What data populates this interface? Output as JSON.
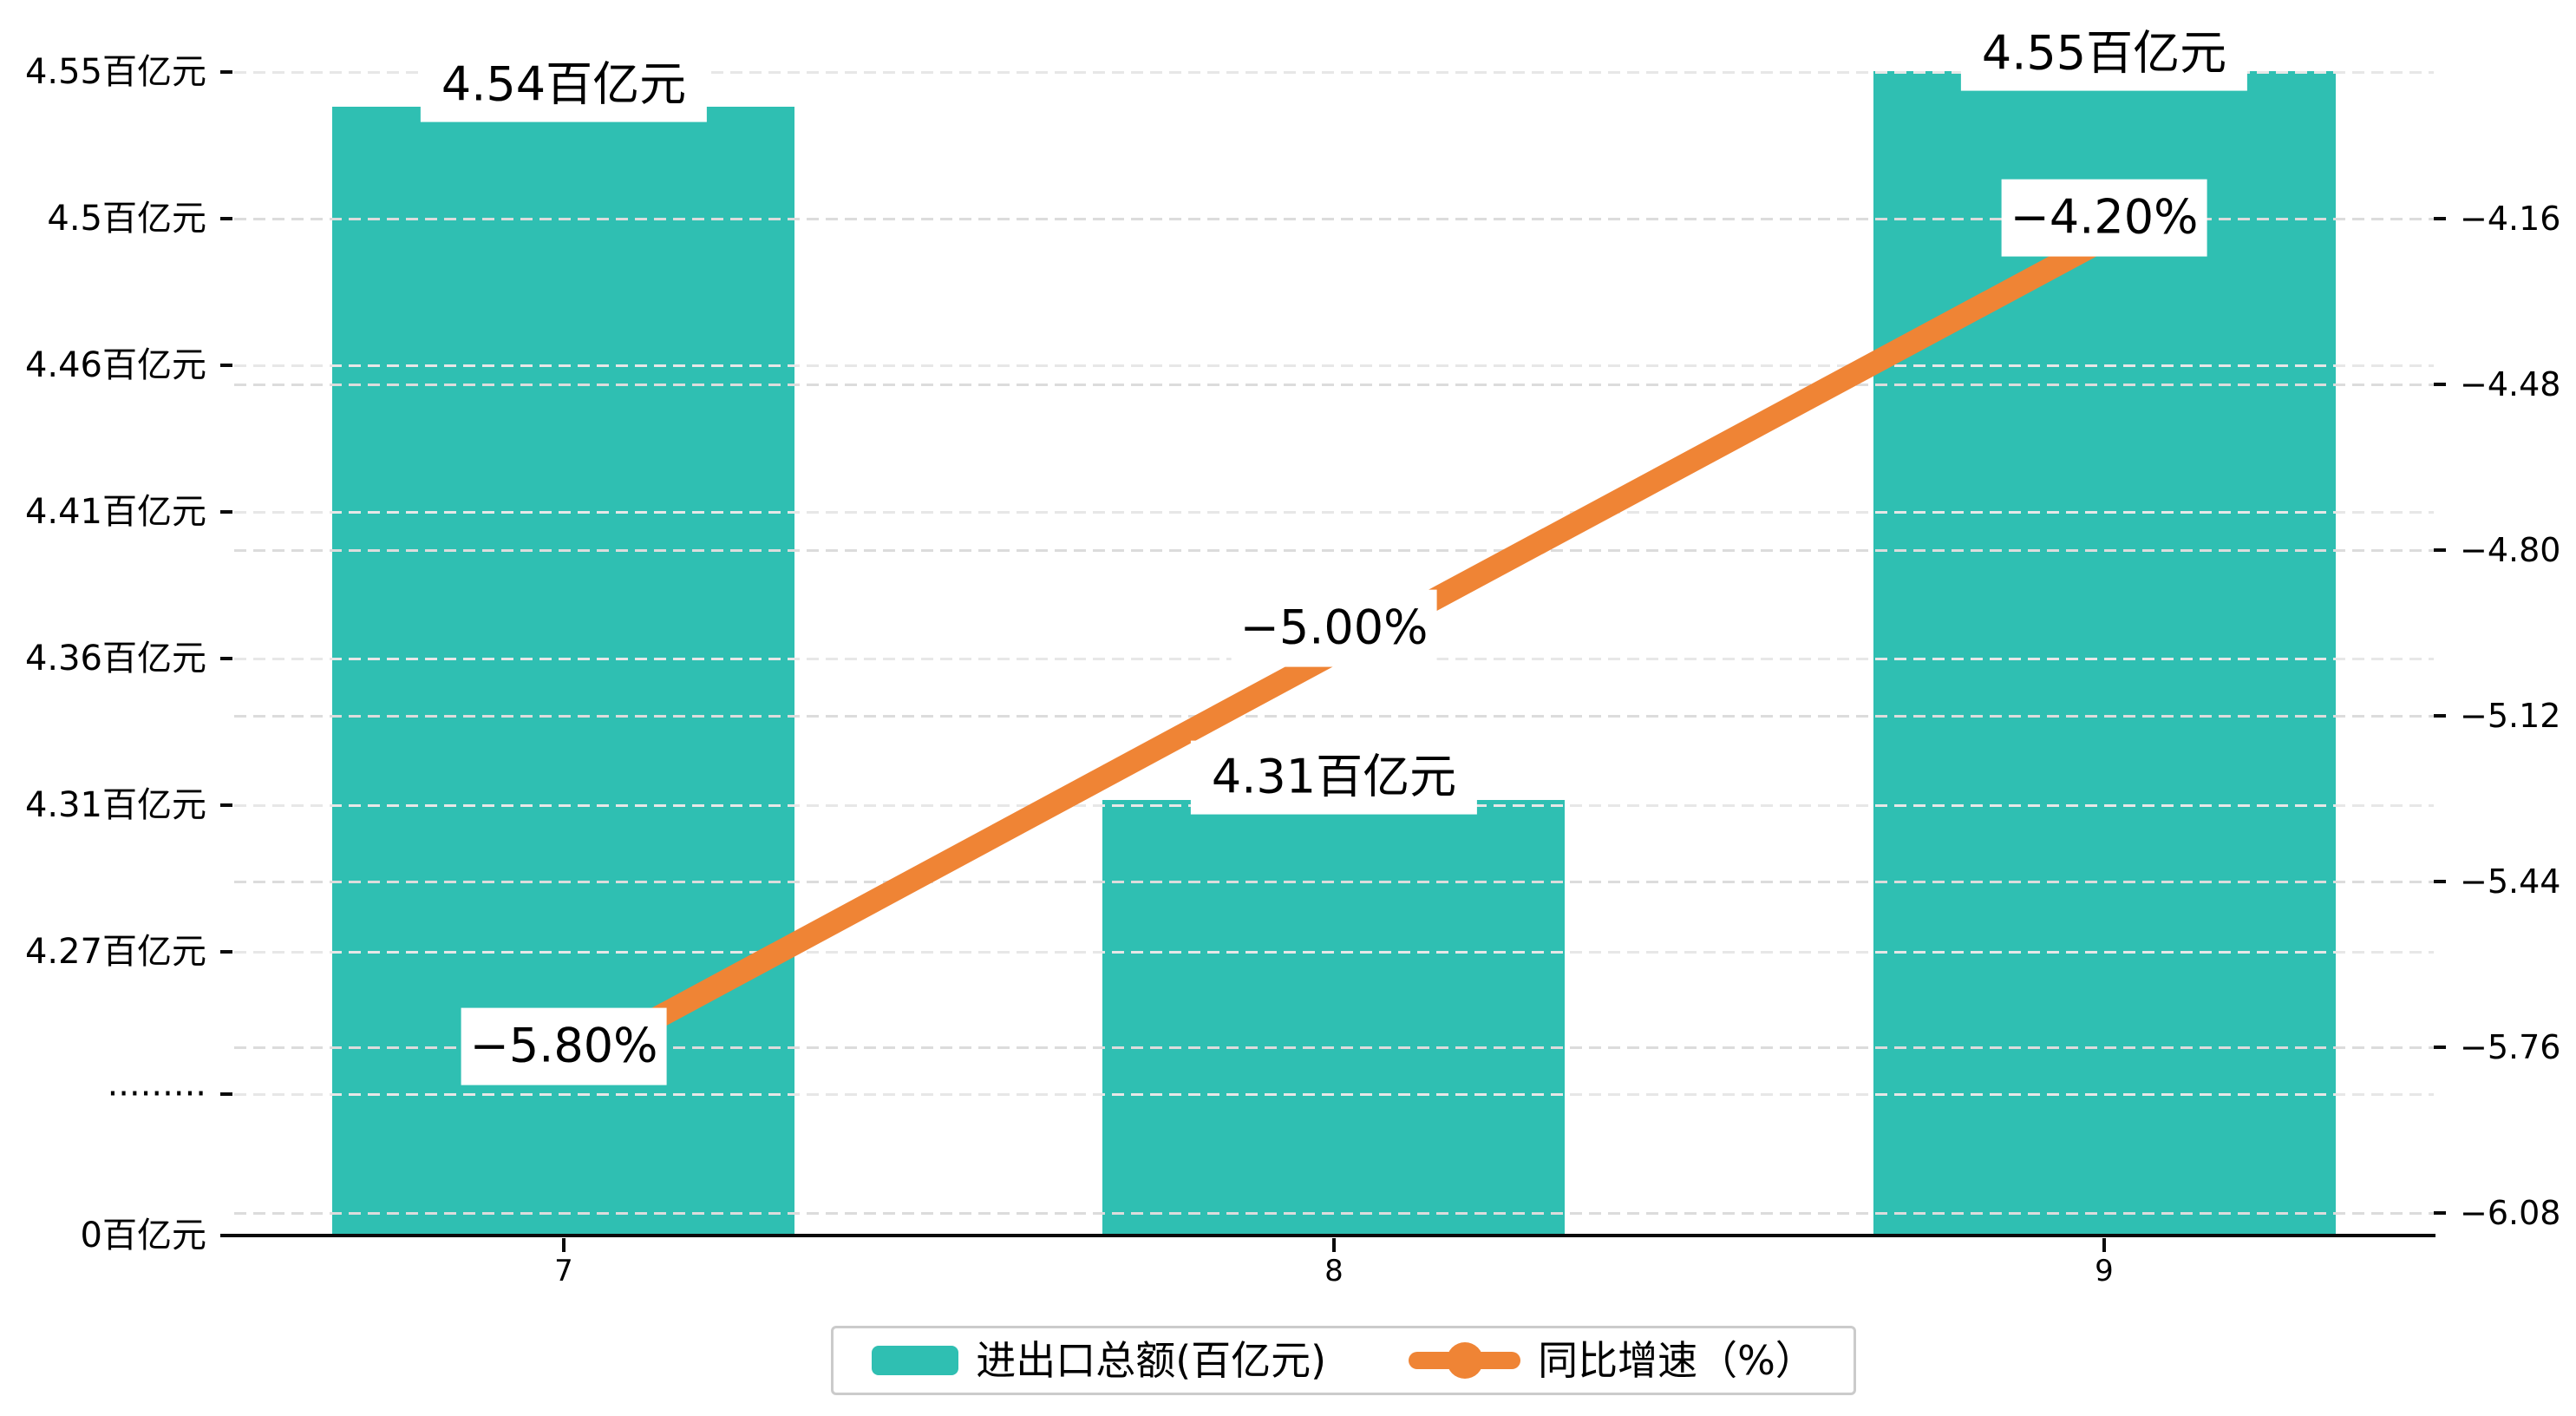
{
  "chart_data": {
    "type": "bar",
    "subtype": "bar-line-combo",
    "categories": [
      "7",
      "8",
      "9"
    ],
    "series": [
      {
        "name": "进出口总额(百亿元)",
        "type": "bar",
        "values": [
          4.54,
          4.31,
          4.55
        ],
        "unit": "百亿元",
        "color": "#2FBFB2",
        "labels": [
          "4.54百亿元",
          "4.31百亿元",
          "4.55百亿元"
        ],
        "axis": "left"
      },
      {
        "name": "同比增速（%）",
        "type": "line",
        "values": [
          -5.8,
          -5.0,
          -4.2
        ],
        "unit": "%",
        "color": "#EF8435",
        "labels": [
          "−5.80%",
          "−5.00%",
          "−4.20%"
        ],
        "axis": "right"
      }
    ],
    "left_axis": {
      "tick_labels": [
        "4.55百亿元",
        "4.5百亿元",
        "4.46百亿元",
        "4.41百亿元",
        "4.36百亿元",
        "4.31百亿元",
        "4.27百亿元"
      ],
      "break_label": "·········",
      "zero_label": "0百亿元",
      "range_note": "broken axis: 0 then 4.27 to 4.55"
    },
    "right_axis": {
      "tick_labels": [
        "−4.16",
        "−4.48",
        "−4.80",
        "−5.12",
        "−5.44",
        "−5.76",
        "−6.08"
      ],
      "ylim": [
        -6.08,
        -4.16
      ]
    },
    "legend": [
      "进出口总额(百亿元)",
      "同比增速（%）"
    ],
    "legend_position": "bottom",
    "grid": true,
    "title": "",
    "colors": {
      "bar": "#2FBFB2",
      "line": "#EF8435",
      "grid_left": "#e7e7e7",
      "grid_right": "#dcdcdc",
      "axis": "#0b0b0b",
      "background": "#ffffff"
    }
  }
}
